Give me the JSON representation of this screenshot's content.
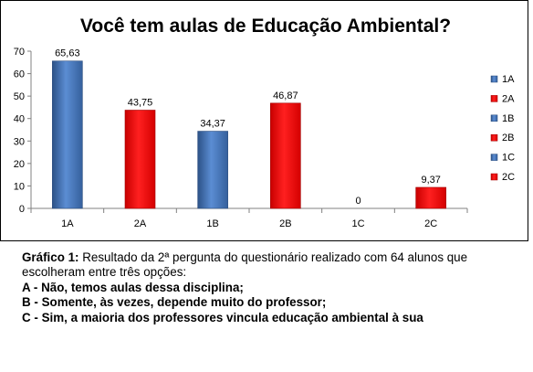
{
  "chart_data": {
    "type": "bar",
    "title": "Você tem aulas de Educação Ambiental?",
    "categories": [
      "1A",
      "2A",
      "1B",
      "2B",
      "1C",
      "2C"
    ],
    "values": [
      65.63,
      43.75,
      34.37,
      46.87,
      0,
      9.37
    ],
    "value_labels": [
      "65,63",
      "43,75",
      "34,37",
      "46,87",
      "0",
      "9,37"
    ],
    "bar_colors": [
      "#4f81bd",
      "#ff0000",
      "#4f81bd",
      "#ff0000",
      "#4f81bd",
      "#ff0000"
    ],
    "ylim": [
      0,
      70
    ],
    "yticks": [
      0,
      10,
      20,
      30,
      40,
      50,
      60,
      70
    ],
    "xlabel": "",
    "ylabel": "",
    "grid": false,
    "legend": {
      "placement": "right",
      "entries": [
        {
          "label": "1A",
          "color": "#4f81bd"
        },
        {
          "label": "2A",
          "color": "#ff0000"
        },
        {
          "label": "1B",
          "color": "#4f81bd"
        },
        {
          "label": "2B",
          "color": "#ff0000"
        },
        {
          "label": "1C",
          "color": "#4f81bd"
        },
        {
          "label": "2C",
          "color": "#ff0000"
        }
      ]
    }
  },
  "caption": {
    "label": "Gráfico 1:",
    "text": " Resultado da 2ª pergunta do questionário realizado com 64 alunos que escolheram entre três opções:",
    "options": [
      {
        "letter": "A - ",
        "text": "Não, temos aulas dessa disciplina;"
      },
      {
        "letter": "B - ",
        "text": "Somente, às vezes, depende muito do professor;"
      },
      {
        "letter": "C - ",
        "text": "Sim, a maioria dos professores vincula educação ambiental à sua"
      }
    ]
  }
}
